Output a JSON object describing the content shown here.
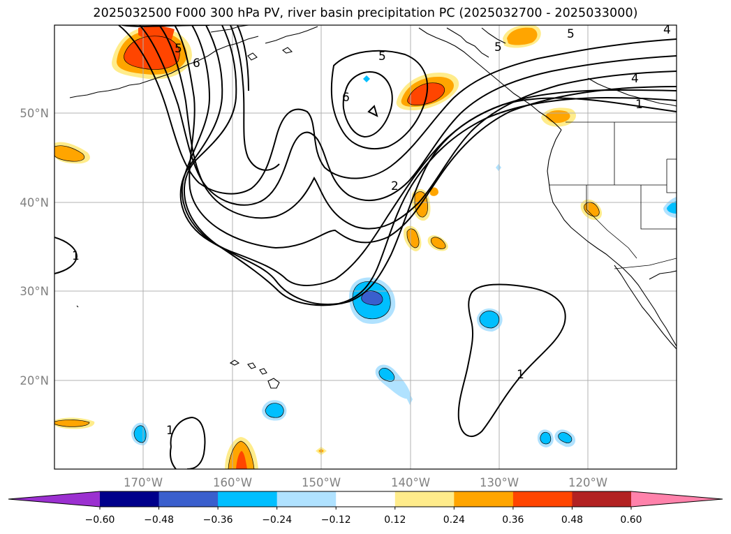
{
  "title": "2025032500 F000 300 hPa PV, river basin precipitation PC (2025032700 - 2025033000)",
  "lon_ticks": [
    "170°W",
    "160°W",
    "150°W",
    "140°W",
    "130°W",
    "120°W"
  ],
  "lat_ticks": [
    "50°N",
    "40°N",
    "30°N",
    "20°N"
  ],
  "colorbar": {
    "ticks": [
      "−0.60",
      "−0.48",
      "−0.36",
      "−0.24",
      "−0.12",
      "0.12",
      "0.24",
      "0.36",
      "0.48",
      "0.60"
    ],
    "colors": [
      "#9b30d0",
      "#00008b",
      "#3a5fcd",
      "#00bfff",
      "#b0e2ff",
      "#ffffff",
      "#ffec8b",
      "#ffa500",
      "#ff4500",
      "#b22222",
      "#ff82ab"
    ]
  },
  "contour_labels": [
    "5",
    "6",
    "5",
    "6",
    "5",
    "5",
    "4",
    "4",
    "1",
    "2",
    "1",
    "1",
    "1"
  ],
  "colors": {
    "positive_light": "#ffec8b",
    "positive_mid": "#ffa500",
    "positive_strong": "#ff4500",
    "negative_light": "#b0e2ff",
    "negative_mid": "#00bfff",
    "negative_strong": "#3a5fcd"
  }
}
